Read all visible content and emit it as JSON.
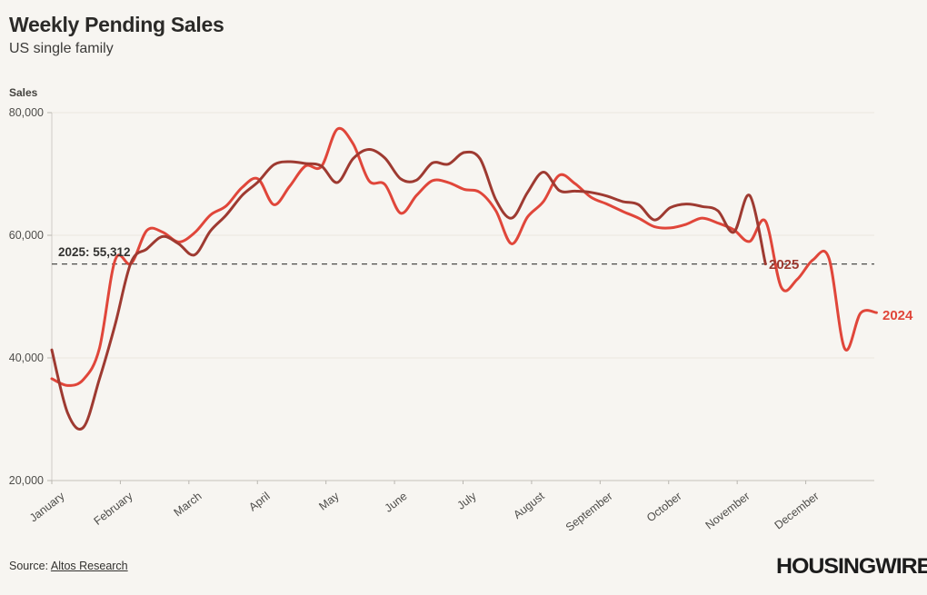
{
  "header": {
    "title": "Weekly Pending Sales",
    "subtitle": "US single family"
  },
  "chart_data": {
    "type": "line",
    "title": "Weekly Pending Sales",
    "subtitle": "US single family",
    "ylabel": "Sales",
    "ylim": [
      20000,
      80000
    ],
    "yticks": [
      80000,
      60000,
      40000,
      20000
    ],
    "ytick_labels": [
      "80,000",
      "60,000",
      "40,000",
      "20,000"
    ],
    "x_categories": [
      "January",
      "February",
      "March",
      "April",
      "May",
      "June",
      "July",
      "August",
      "September",
      "October",
      "November",
      "December"
    ],
    "x_unit": "week-of-year",
    "grid": "horizontal-faint",
    "legend_position": "end-of-line",
    "reference_line": {
      "label": "2025: 55,312",
      "value": 55312,
      "style": "dashed"
    },
    "series": [
      {
        "name": "2024",
        "color": "#e0463a",
        "values": [
          36600,
          35500,
          36500,
          41500,
          56000,
          55400,
          60800,
          60500,
          58900,
          60400,
          63300,
          64800,
          67800,
          69200,
          65000,
          68000,
          71300,
          71200,
          77300,
          74900,
          68900,
          68300,
          63600,
          66500,
          68900,
          68600,
          67500,
          67000,
          64000,
          58600,
          63000,
          65500,
          69800,
          68400,
          66200,
          65100,
          63900,
          62800,
          61400,
          61200,
          61800,
          62800,
          62000,
          60900,
          59000,
          62300,
          51500,
          52800,
          56000,
          56300,
          41500,
          47300,
          47400
        ]
      },
      {
        "name": "2025",
        "color": "#9e3a31",
        "values": [
          41300,
          31000,
          28700,
          36500,
          45500,
          55600,
          57800,
          59800,
          58600,
          56800,
          60700,
          63300,
          66500,
          68700,
          71500,
          72000,
          71700,
          71300,
          68600,
          72500,
          74000,
          72600,
          69200,
          69000,
          71800,
          71600,
          73500,
          72500,
          65800,
          62800,
          67000,
          70300,
          67300,
          67200,
          67000,
          66400,
          65500,
          65000,
          62500,
          64500,
          65100,
          64700,
          64000,
          60500,
          66500,
          55312
        ]
      }
    ]
  },
  "footer": {
    "source_prefix": "Source: ",
    "source_link": "Altos Research",
    "brand": "HOUSINGWIRE"
  }
}
